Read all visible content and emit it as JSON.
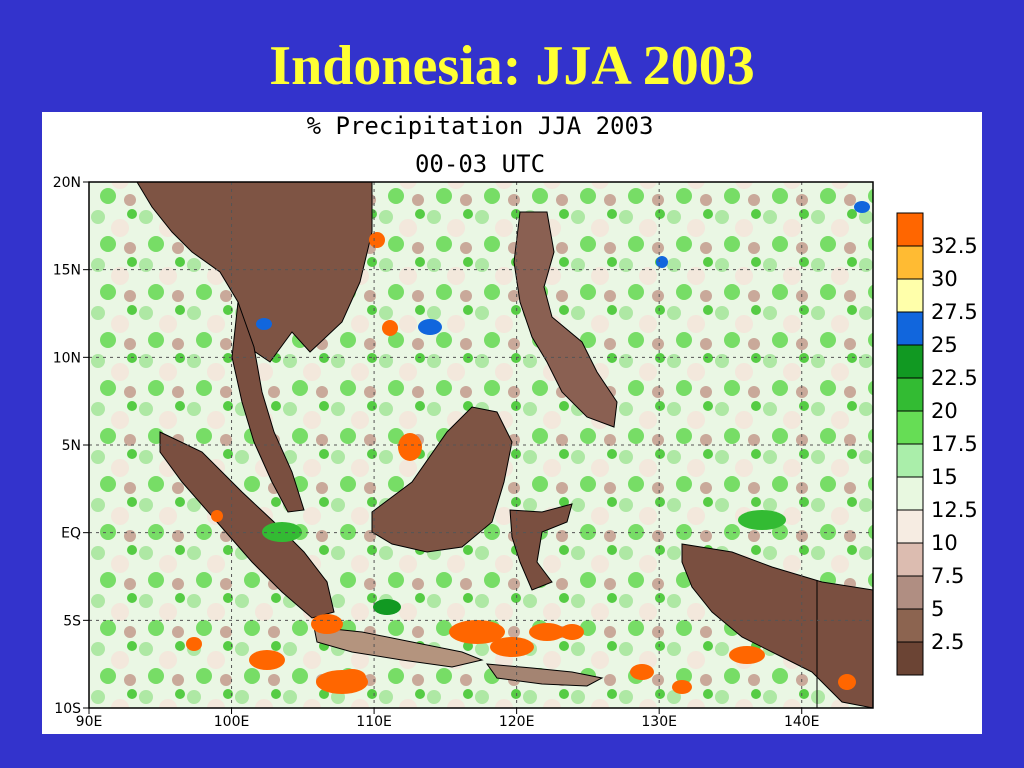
{
  "slide": {
    "title": "Indonesia: JJA 2003"
  },
  "map": {
    "title_line1": "% Precipitation JJA 2003",
    "title_line2": "00-03 UTC",
    "lon_range": [
      90,
      145
    ],
    "lat_range": [
      -10,
      20
    ],
    "lat_ticks": [
      {
        "value": 20,
        "label": "20N"
      },
      {
        "value": 15,
        "label": "15N"
      },
      {
        "value": 10,
        "label": "10N"
      },
      {
        "value": 5,
        "label": "5N"
      },
      {
        "value": 0,
        "label": "EQ"
      },
      {
        "value": -5,
        "label": "5S"
      },
      {
        "value": -10,
        "label": "10S"
      }
    ],
    "lon_ticks": [
      {
        "value": 90,
        "label": "90E"
      },
      {
        "value": 100,
        "label": "100E"
      },
      {
        "value": 110,
        "label": "110E"
      },
      {
        "value": 120,
        "label": "120E"
      },
      {
        "value": 130,
        "label": "130E"
      },
      {
        "value": 140,
        "label": "140E"
      }
    ],
    "gridlines": "dashed"
  },
  "legend": {
    "placement": "right",
    "levels": [
      {
        "label": "32.5",
        "color": "#ff6600"
      },
      {
        "label": "30",
        "color": "#ffbb33"
      },
      {
        "label": "27.5",
        "color": "#ffffaa"
      },
      {
        "label": "25",
        "color": "#1166dd"
      },
      {
        "label": "22.5",
        "color": "#119922"
      },
      {
        "label": "20",
        "color": "#33bb33"
      },
      {
        "label": "17.5",
        "color": "#66dd55"
      },
      {
        "label": "15",
        "color": "#aaeeaa"
      },
      {
        "label": "12.5",
        "color": "#e8f8e0"
      },
      {
        "label": "10",
        "color": "#f6ece2"
      },
      {
        "label": "7.5",
        "color": "#dcbcb0"
      },
      {
        "label": "5",
        "color": "#b08e82"
      },
      {
        "label": "2.5",
        "color": "#8c6450"
      },
      {
        "label": "",
        "color": "#6b4434"
      }
    ]
  }
}
